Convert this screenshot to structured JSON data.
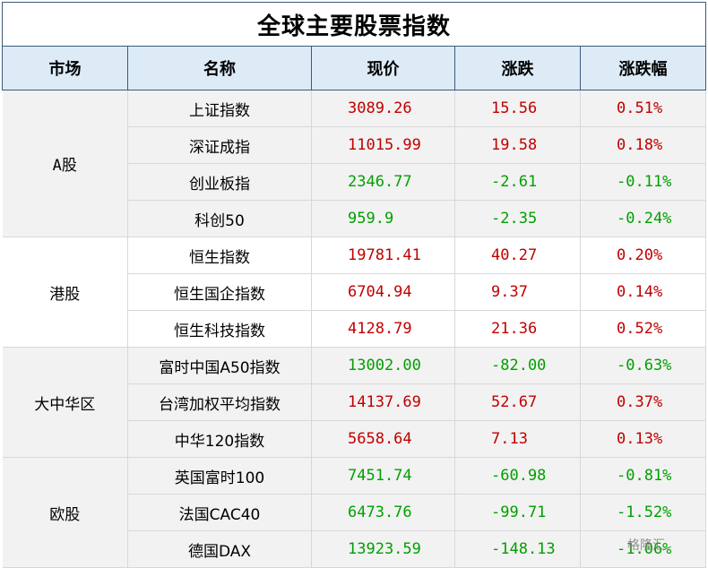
{
  "title": "全球主要股票指数",
  "headers": [
    "市场",
    "名称",
    "现价",
    "涨跌",
    "涨跌幅"
  ],
  "colors": {
    "up": "#c00000",
    "down": "#00a000",
    "header_bg": "#ddebf7",
    "group_bg": "#f2f2f2"
  },
  "groups": [
    {
      "market": "A股",
      "rows": [
        {
          "name": "上证指数",
          "price": "3089.26",
          "change": "15.56",
          "pct": "0.51%",
          "dir": "up"
        },
        {
          "name": "深证成指",
          "price": "11015.99",
          "change": "19.58",
          "pct": "0.18%",
          "dir": "up"
        },
        {
          "name": "创业板指",
          "price": "2346.77",
          "change": "-2.61",
          "pct": "-0.11%",
          "dir": "down"
        },
        {
          "name": "科创50",
          "price": "959.9",
          "change": "-2.35",
          "pct": "-0.24%",
          "dir": "down"
        }
      ]
    },
    {
      "market": "港股",
      "rows": [
        {
          "name": "恒生指数",
          "price": "19781.41",
          "change": "40.27",
          "pct": "0.20%",
          "dir": "up"
        },
        {
          "name": "恒生国企指数",
          "price": "6704.94",
          "change": "9.37",
          "pct": "0.14%",
          "dir": "up"
        },
        {
          "name": "恒生科技指数",
          "price": "4128.79",
          "change": "21.36",
          "pct": "0.52%",
          "dir": "up"
        }
      ]
    },
    {
      "market": "大中华区",
      "rows": [
        {
          "name": "富时中国A50指数",
          "price": "13002.00",
          "change": "-82.00",
          "pct": "-0.63%",
          "dir": "down"
        },
        {
          "name": "台湾加权平均指数",
          "price": "14137.69",
          "change": "52.67",
          "pct": "0.37%",
          "dir": "up"
        },
        {
          "name": "中华120指数",
          "price": "5658.64",
          "change": "7.13",
          "pct": "0.13%",
          "dir": "up"
        }
      ]
    },
    {
      "market": "欧股",
      "rows": [
        {
          "name": "英国富时100",
          "price": "7451.74",
          "change": "-60.98",
          "pct": "-0.81%",
          "dir": "down"
        },
        {
          "name": "法国CAC40",
          "price": "6473.76",
          "change": "-99.71",
          "pct": "-1.52%",
          "dir": "down"
        },
        {
          "name": "德国DAX",
          "price": "13923.59",
          "change": "-148.13",
          "pct": "-1.06%",
          "dir": "down"
        }
      ]
    }
  ],
  "watermark": "格隆汇"
}
